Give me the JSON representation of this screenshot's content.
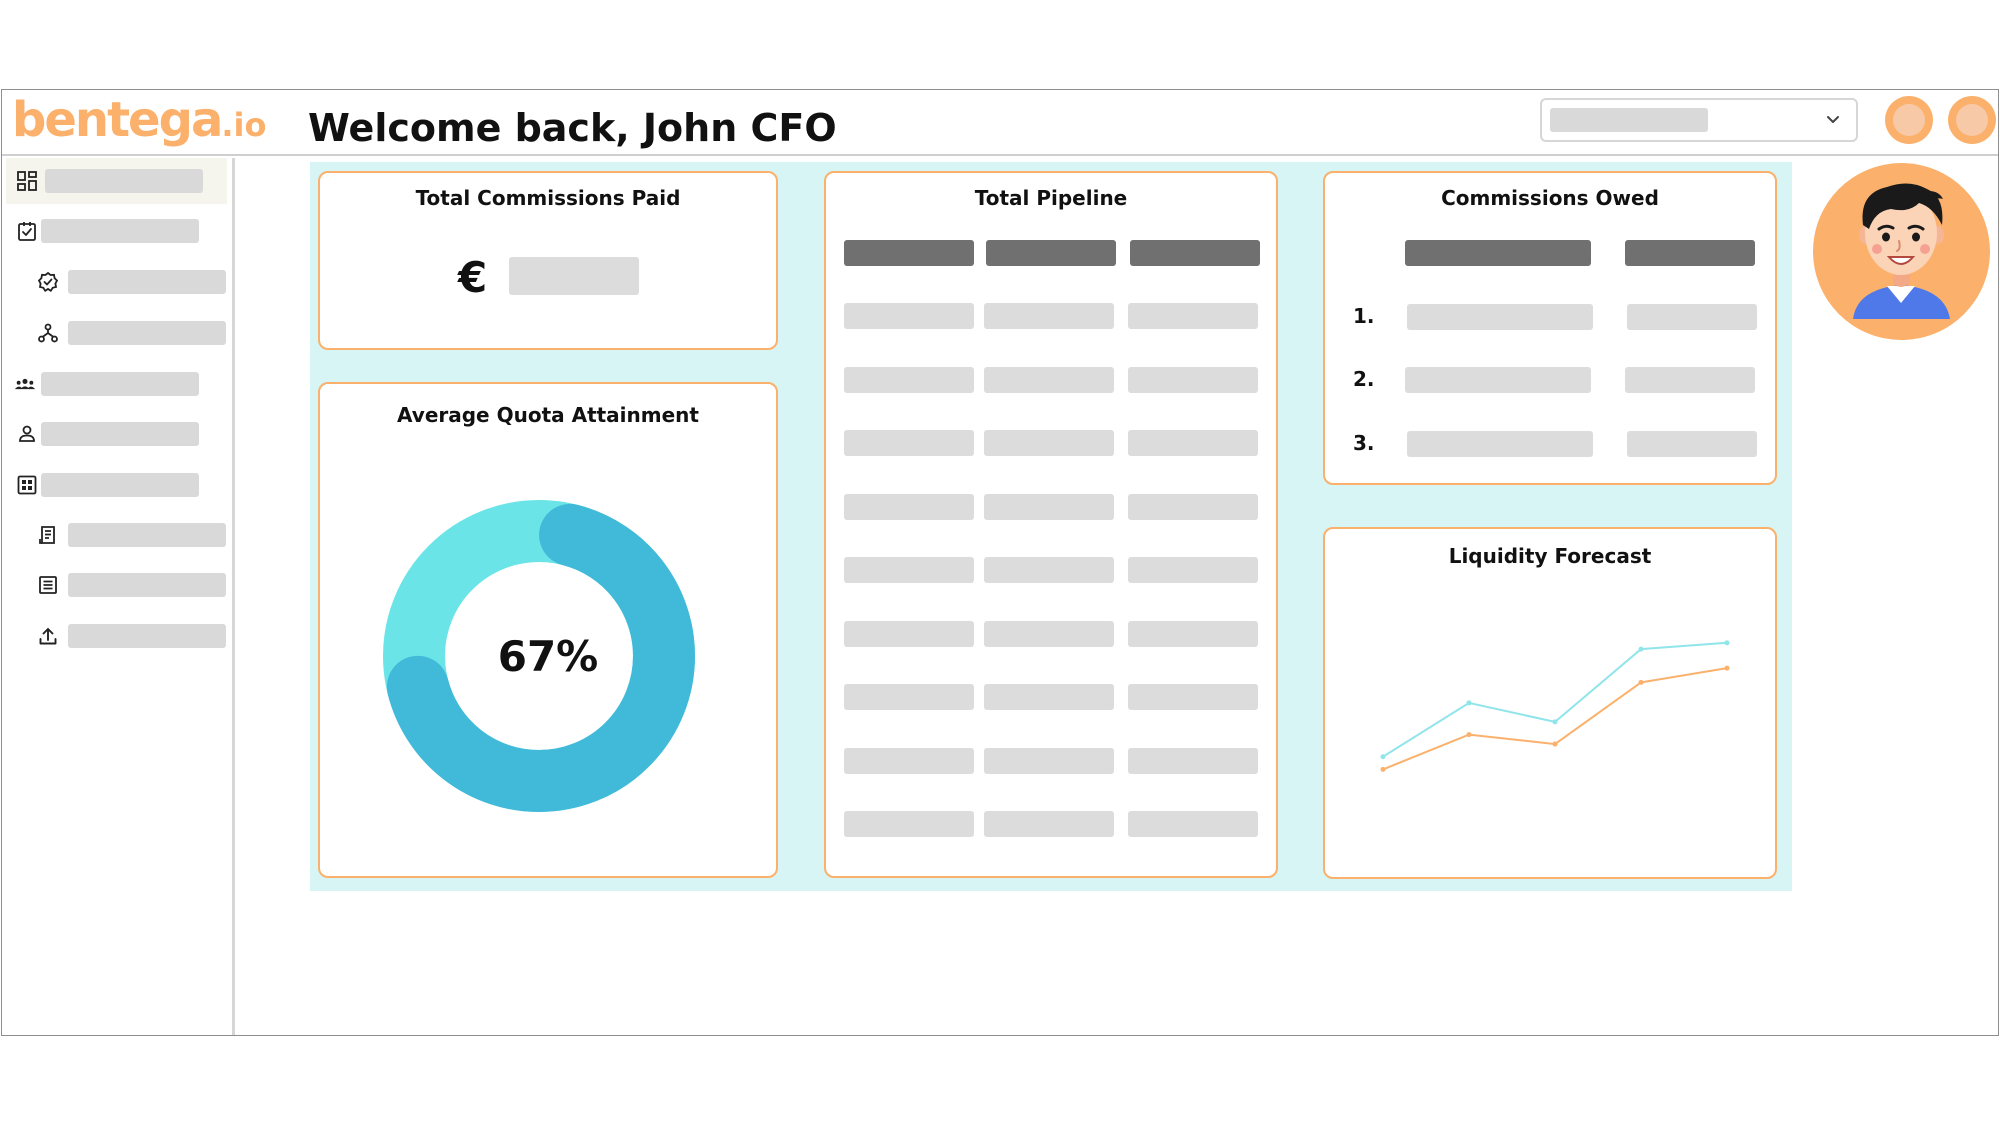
{
  "brand": {
    "name": "bentega",
    "tld": ".io",
    "color": "#fbb06b"
  },
  "header": {
    "selector_icon": "chevron-down-icon",
    "buttons": [
      "notifications-button",
      "profile-button"
    ]
  },
  "sidebar": {
    "items": [
      {
        "icon": "dashboard-icon",
        "active": true
      },
      {
        "icon": "clipboard-check-icon"
      },
      {
        "icon": "badge-check-icon",
        "sub": true
      },
      {
        "icon": "workflow-icon",
        "sub": true
      },
      {
        "icon": "team-icon"
      },
      {
        "icon": "user-icon"
      },
      {
        "icon": "grid-icon"
      },
      {
        "icon": "receipt-icon",
        "sub": true
      },
      {
        "icon": "list-icon",
        "sub": true
      },
      {
        "icon": "upload-icon",
        "sub": true
      }
    ]
  },
  "main": {
    "welcome": "Welcome back, John CFO",
    "cards": {
      "commissions_paid": {
        "title": "Total Commissions Paid",
        "currency": "€"
      },
      "quota": {
        "title": "Average Quota Attainment",
        "value_label": "67%",
        "value": 0.67
      },
      "pipeline": {
        "title": "Total Pipeline",
        "rows": 9,
        "cols": 3
      },
      "owed": {
        "title": "Commissions Owed",
        "ranks": [
          "1.",
          "2.",
          "3."
        ]
      },
      "liquidity": {
        "title": "Liquidity Forecast"
      }
    }
  },
  "colors": {
    "accent": "#fbb06b",
    "board_bg": "#d6f5f4",
    "donut_dark": "#41b9d8",
    "donut_light": "#6ae4e7",
    "placeholder": "#dcdcdc",
    "placeholder_dark": "#707070"
  },
  "chart_data": {
    "type": "line",
    "title": "Liquidity Forecast",
    "x": [
      1,
      2,
      3,
      4,
      5
    ],
    "series": [
      {
        "values": [
          28,
          62,
          50,
          96,
          100
        ],
        "color": "#8fe5ea"
      },
      {
        "values": [
          20,
          42,
          36,
          75,
          84
        ],
        "color": "#fbb06b"
      }
    ],
    "ylim": [
      0,
      110
    ],
    "grid": false
  }
}
